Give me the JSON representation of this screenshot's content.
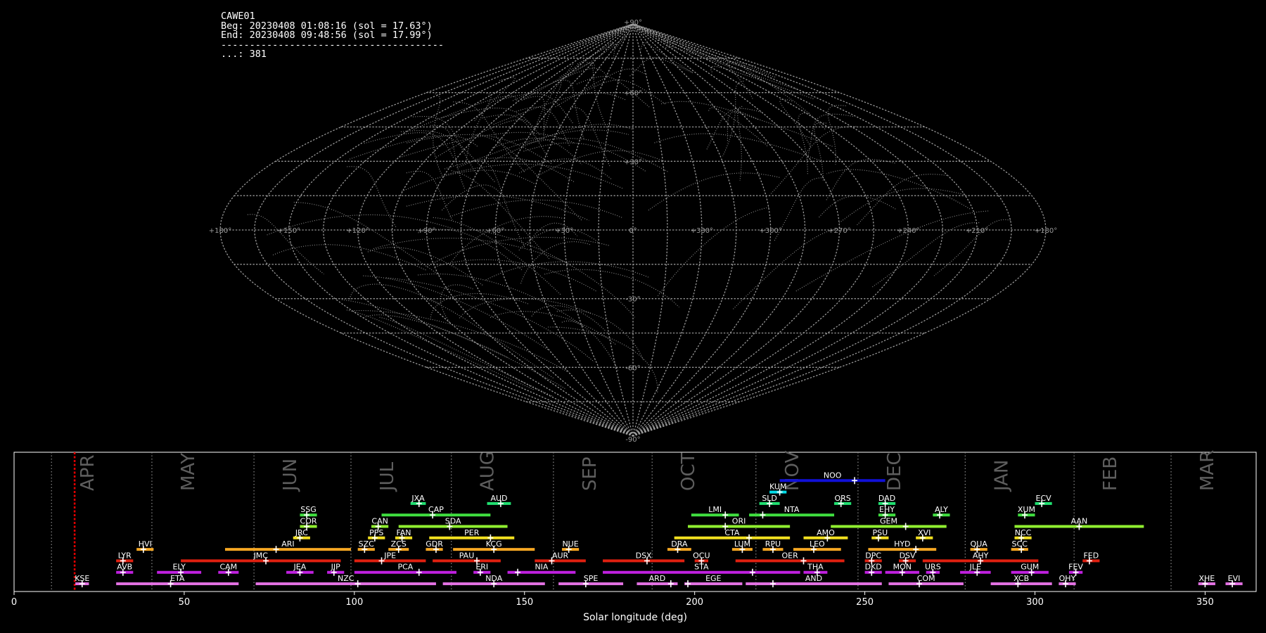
{
  "header": {
    "camera": "CAWE01",
    "begin": "Beg: 20230408 01:08:16 (sol = 17.63°)",
    "end": "End: 20230408 09:48:56 (sol = 17.99°)",
    "separator": "---------------------------------------",
    "count": "...: 381"
  },
  "chart_data": [
    {
      "type": "scatter",
      "projection": "sinusoidal all-sky",
      "grid": true,
      "lat_labels": [
        "+90°",
        "+60°",
        "+30°",
        "0°",
        "-30°",
        "-60°",
        "-90°"
      ],
      "lon_labels": [
        "+180°",
        "+150°",
        "+120°",
        "+90°",
        "+60°",
        "+30°",
        "0°",
        "+330°",
        "+300°",
        "+270°",
        "+240°",
        "+210°",
        "+180°"
      ],
      "description": "dotted trails of 381 recorded meteors in the sky map"
    },
    {
      "type": "bar",
      "xlabel": "Solar longitude (deg)",
      "xlim": [
        0,
        365
      ],
      "xticks": [
        0,
        50,
        100,
        150,
        200,
        250,
        300,
        350
      ],
      "current_sol": 17.8,
      "months": [
        {
          "name": "APR",
          "start": 11.0
        },
        {
          "name": "MAY",
          "start": 40.5
        },
        {
          "name": "JUN",
          "start": 70.5
        },
        {
          "name": "JUL",
          "start": 99.0
        },
        {
          "name": "AUG",
          "start": 128.5
        },
        {
          "name": "SEP",
          "start": 158.5
        },
        {
          "name": "OCT",
          "start": 187.5
        },
        {
          "name": "NOV",
          "start": 218.0
        },
        {
          "name": "DEC",
          "start": 248.0
        },
        {
          "name": "JAN",
          "start": 279.5
        },
        {
          "name": "FEB",
          "start": 311.5
        },
        {
          "name": "MAR",
          "start": 340.0
        }
      ],
      "showers": [
        {
          "code": "NOO",
          "start": 225,
          "end": 256,
          "peak": 247,
          "row": 10,
          "color": "#1010d8"
        },
        {
          "code": "KUM",
          "start": 222,
          "end": 227,
          "peak": 225,
          "row": 9,
          "color": "#00dde8"
        },
        {
          "code": "JXA",
          "start": 116.5,
          "end": 121,
          "peak": 119,
          "row": 8,
          "color": "#20e070"
        },
        {
          "code": "AUD",
          "start": 139,
          "end": 146,
          "peak": 143,
          "row": 8,
          "color": "#20e070"
        },
        {
          "code": "SLD",
          "start": 219,
          "end": 225,
          "peak": 222,
          "row": 8,
          "color": "#20e070"
        },
        {
          "code": "ORS",
          "start": 241,
          "end": 246,
          "peak": 243,
          "row": 8,
          "color": "#20e070"
        },
        {
          "code": "DAD",
          "start": 254,
          "end": 259,
          "peak": 256,
          "row": 8,
          "color": "#20e070"
        },
        {
          "code": "ECV",
          "start": 300,
          "end": 305,
          "peak": 302,
          "row": 8,
          "color": "#20e070"
        },
        {
          "code": "SSG",
          "start": 84,
          "end": 89,
          "peak": 86,
          "row": 7,
          "color": "#40e040"
        },
        {
          "code": "CAP",
          "start": 108,
          "end": 140,
          "peak": 123,
          "row": 7,
          "color": "#40e040"
        },
        {
          "code": "LMI",
          "start": 199,
          "end": 213,
          "peak": 209,
          "row": 7,
          "color": "#40e040"
        },
        {
          "code": "NTA",
          "start": 216,
          "end": 241,
          "peak": 220,
          "row": 7,
          "color": "#40e040"
        },
        {
          "code": "EHY",
          "start": 254,
          "end": 259,
          "peak": 256,
          "row": 7,
          "color": "#40e040"
        },
        {
          "code": "ALY",
          "start": 270,
          "end": 275,
          "peak": 272,
          "row": 7,
          "color": "#40e040"
        },
        {
          "code": "XUM",
          "start": 295,
          "end": 300,
          "peak": 297,
          "row": 7,
          "color": "#40e040"
        },
        {
          "code": "COR",
          "start": 84,
          "end": 89,
          "peak": 86,
          "row": 6,
          "color": "#90ee30"
        },
        {
          "code": "CAN",
          "start": 105,
          "end": 110,
          "peak": 107,
          "row": 6,
          "color": "#90ee30"
        },
        {
          "code": "SDA",
          "start": 113,
          "end": 145,
          "peak": 128,
          "row": 6,
          "color": "#90ee30"
        },
        {
          "code": "ORI",
          "start": 198,
          "end": 228,
          "peak": 209,
          "row": 6,
          "color": "#90ee30"
        },
        {
          "code": "GEM",
          "start": 240,
          "end": 274,
          "peak": 262,
          "row": 6,
          "color": "#90ee30"
        },
        {
          "code": "AAN",
          "start": 294,
          "end": 332,
          "peak": 313,
          "row": 6,
          "color": "#90ee30"
        },
        {
          "code": "JRC",
          "start": 82,
          "end": 87,
          "peak": 84,
          "row": 5,
          "color": "#f2e020"
        },
        {
          "code": "PPS",
          "start": 104,
          "end": 109,
          "peak": 106,
          "row": 5,
          "color": "#f2e020"
        },
        {
          "code": "FAN",
          "start": 112,
          "end": 117,
          "peak": 114,
          "row": 5,
          "color": "#f2e020"
        },
        {
          "code": "PER",
          "start": 122,
          "end": 147,
          "peak": 140,
          "row": 5,
          "color": "#f2e020"
        },
        {
          "code": "CTA",
          "start": 194,
          "end": 228,
          "peak": 216,
          "row": 5,
          "color": "#f2e020"
        },
        {
          "code": "AMO",
          "start": 232,
          "end": 245,
          "peak": 239,
          "row": 5,
          "color": "#f2e020"
        },
        {
          "code": "PSU",
          "start": 252,
          "end": 257,
          "peak": 254,
          "row": 5,
          "color": "#f2e020"
        },
        {
          "code": "XVI",
          "start": 265,
          "end": 270,
          "peak": 267,
          "row": 5,
          "color": "#f2e020"
        },
        {
          "code": "NCC",
          "start": 294,
          "end": 299,
          "peak": 296,
          "row": 5,
          "color": "#f2e020"
        },
        {
          "code": "HVI",
          "start": 36,
          "end": 41,
          "peak": 38,
          "row": 4,
          "color": "#f5a623"
        },
        {
          "code": "ARI",
          "start": 62,
          "end": 99,
          "peak": 77,
          "row": 4,
          "color": "#f5a623"
        },
        {
          "code": "SZC",
          "start": 101,
          "end": 106,
          "peak": 103,
          "row": 4,
          "color": "#f5a623"
        },
        {
          "code": "ZCS",
          "start": 110,
          "end": 116,
          "peak": 113,
          "row": 4,
          "color": "#f5a623"
        },
        {
          "code": "GDR",
          "start": 121,
          "end": 126,
          "peak": 124,
          "row": 4,
          "color": "#f5a623"
        },
        {
          "code": "KCG",
          "start": 129,
          "end": 153,
          "peak": 141,
          "row": 4,
          "color": "#f5a623"
        },
        {
          "code": "NUE",
          "start": 161,
          "end": 166,
          "peak": 163,
          "row": 4,
          "color": "#f5a623"
        },
        {
          "code": "DRA",
          "start": 192,
          "end": 199,
          "peak": 195,
          "row": 4,
          "color": "#f5a623"
        },
        {
          "code": "LUM",
          "start": 211,
          "end": 217,
          "peak": 214,
          "row": 4,
          "color": "#f5a623"
        },
        {
          "code": "RPU",
          "start": 220,
          "end": 226,
          "peak": 223,
          "row": 4,
          "color": "#f5a623"
        },
        {
          "code": "LEO",
          "start": 229,
          "end": 243,
          "peak": 235,
          "row": 4,
          "color": "#f5a623"
        },
        {
          "code": "HYD",
          "start": 251,
          "end": 271,
          "peak": 265,
          "row": 4,
          "color": "#f5a623"
        },
        {
          "code": "QUA",
          "start": 281,
          "end": 286,
          "peak": 283,
          "row": 4,
          "color": "#f5a623"
        },
        {
          "code": "SCC",
          "start": 293,
          "end": 298,
          "peak": 296,
          "row": 4,
          "color": "#f5a623"
        },
        {
          "code": "LYR",
          "start": 30,
          "end": 35,
          "peak": 32,
          "row": 3,
          "color": "#e02010"
        },
        {
          "code": "JMC",
          "start": 49,
          "end": 96,
          "peak": 74,
          "row": 3,
          "color": "#e02010"
        },
        {
          "code": "JPE",
          "start": 100,
          "end": 121,
          "peak": 108,
          "row": 3,
          "color": "#e02010"
        },
        {
          "code": "PAU",
          "start": 123,
          "end": 143,
          "peak": 136,
          "row": 3,
          "color": "#e02010"
        },
        {
          "code": "AUR",
          "start": 153,
          "end": 168,
          "peak": 158,
          "row": 3,
          "color": "#e02010"
        },
        {
          "code": "DSX",
          "start": 173,
          "end": 197,
          "peak": 186,
          "row": 3,
          "color": "#e02010"
        },
        {
          "code": "OCU",
          "start": 200,
          "end": 204,
          "peak": 202,
          "row": 3,
          "color": "#e02010"
        },
        {
          "code": "OER",
          "start": 212,
          "end": 244,
          "peak": 232,
          "row": 3,
          "color": "#e02010"
        },
        {
          "code": "DPC",
          "start": 250,
          "end": 255,
          "peak": 252,
          "row": 3,
          "color": "#e02010"
        },
        {
          "code": "DSV",
          "start": 260,
          "end": 265,
          "peak": 262,
          "row": 3,
          "color": "#e02010"
        },
        {
          "code": "AHY",
          "start": 267,
          "end": 301,
          "peak": 284,
          "row": 3,
          "color": "#e02010"
        },
        {
          "code": "FED",
          "start": 314,
          "end": 319,
          "peak": 316,
          "row": 3,
          "color": "#e02010"
        },
        {
          "code": "AVB",
          "start": 30,
          "end": 35,
          "peak": 32,
          "row": 2,
          "color": "#c020e0"
        },
        {
          "code": "ELY",
          "start": 42,
          "end": 55,
          "peak": 49,
          "row": 2,
          "color": "#c020e0"
        },
        {
          "code": "CAM",
          "start": 60,
          "end": 66,
          "peak": 63,
          "row": 2,
          "color": "#c020e0"
        },
        {
          "code": "JEA",
          "start": 80,
          "end": 88,
          "peak": 84,
          "row": 2,
          "color": "#c020e0"
        },
        {
          "code": "JIP",
          "start": 92,
          "end": 97,
          "peak": 94,
          "row": 2,
          "color": "#c020e0"
        },
        {
          "code": "PCA",
          "start": 100,
          "end": 130,
          "peak": 119,
          "row": 2,
          "color": "#c020e0"
        },
        {
          "code": "ERI",
          "start": 135,
          "end": 140,
          "peak": 137,
          "row": 2,
          "color": "#c020e0"
        },
        {
          "code": "NIA",
          "start": 145,
          "end": 165,
          "peak": 148,
          "row": 2,
          "color": "#c020e0"
        },
        {
          "code": "STA",
          "start": 173,
          "end": 231,
          "peak": 217,
          "row": 2,
          "color": "#c020e0"
        },
        {
          "code": "THA",
          "start": 232,
          "end": 239,
          "peak": 236,
          "row": 2,
          "color": "#c020e0"
        },
        {
          "code": "DKD",
          "start": 250,
          "end": 255,
          "peak": 252,
          "row": 2,
          "color": "#c020e0"
        },
        {
          "code": "MON",
          "start": 256,
          "end": 266,
          "peak": 261,
          "row": 2,
          "color": "#c020e0"
        },
        {
          "code": "URS",
          "start": 268,
          "end": 272,
          "peak": 270,
          "row": 2,
          "color": "#c020e0"
        },
        {
          "code": "JLE",
          "start": 278,
          "end": 287,
          "peak": 283,
          "row": 2,
          "color": "#c020e0"
        },
        {
          "code": "GUM",
          "start": 293,
          "end": 304,
          "peak": 299,
          "row": 2,
          "color": "#c020e0"
        },
        {
          "code": "FEV",
          "start": 310,
          "end": 314,
          "peak": 312,
          "row": 2,
          "color": "#c020e0"
        },
        {
          "code": "KSE",
          "start": 18,
          "end": 22,
          "peak": 20,
          "row": 1,
          "color": "#e070e0"
        },
        {
          "code": "ETA",
          "start": 30,
          "end": 66,
          "peak": 46,
          "row": 1,
          "color": "#e070e0"
        },
        {
          "code": "NZC",
          "start": 71,
          "end": 124,
          "peak": 101,
          "row": 1,
          "color": "#e070e0"
        },
        {
          "code": "NDA",
          "start": 126,
          "end": 156,
          "peak": 141,
          "row": 1,
          "color": "#e070e0"
        },
        {
          "code": "SPE",
          "start": 160,
          "end": 179,
          "peak": 168,
          "row": 1,
          "color": "#e070e0"
        },
        {
          "code": "ARD",
          "start": 183,
          "end": 195,
          "peak": 193,
          "row": 1,
          "color": "#e070e0"
        },
        {
          "code": "EGE",
          "start": 197,
          "end": 214,
          "peak": 198,
          "row": 1,
          "color": "#e070e0"
        },
        {
          "code": "AND",
          "start": 215,
          "end": 255,
          "peak": 223,
          "row": 1,
          "color": "#e070e0"
        },
        {
          "code": "COM",
          "start": 257,
          "end": 279,
          "peak": 266,
          "row": 1,
          "color": "#e070e0"
        },
        {
          "code": "XCB",
          "start": 287,
          "end": 305,
          "peak": 295,
          "row": 1,
          "color": "#e070e0"
        },
        {
          "code": "OHY",
          "start": 307,
          "end": 312,
          "peak": 309,
          "row": 1,
          "color": "#e070e0"
        },
        {
          "code": "XHE",
          "start": 348,
          "end": 353,
          "peak": 350,
          "row": 1,
          "color": "#e070e0"
        },
        {
          "code": "EVI",
          "start": 356,
          "end": 361,
          "peak": 358,
          "row": 1,
          "color": "#e070e0"
        }
      ]
    }
  ]
}
